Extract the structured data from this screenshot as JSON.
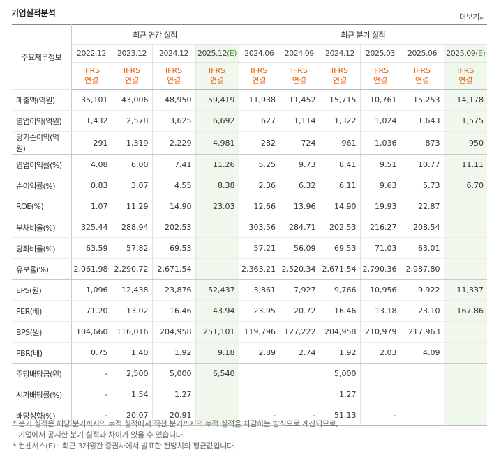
{
  "header": {
    "title": "기업실적분석",
    "more_label": "더보기"
  },
  "table": {
    "label_header": "주요재무정보",
    "group_annual": "최근 연간 실적",
    "group_quarter": "최근 분기 실적",
    "periods": [
      {
        "main": "2022.12",
        "est": ""
      },
      {
        "main": "2023.12",
        "est": ""
      },
      {
        "main": "2024.12",
        "est": ""
      },
      {
        "main": "2025.12",
        "est": "(E)"
      },
      {
        "main": "2024.06",
        "est": ""
      },
      {
        "main": "2024.09",
        "est": ""
      },
      {
        "main": "2024.12",
        "est": ""
      },
      {
        "main": "2025.03",
        "est": ""
      },
      {
        "main": "2025.06",
        "est": ""
      },
      {
        "main": "2025.09",
        "est": "(E)"
      }
    ],
    "ifrs_line1": "IFRS",
    "ifrs_line2": "연결",
    "rows": [
      {
        "label": "매출액(억원)",
        "values": [
          "35,101",
          "43,006",
          "48,950",
          "59,419",
          "11,938",
          "11,452",
          "15,715",
          "10,761",
          "15,253",
          "14,178"
        ]
      },
      {
        "label": "영업이익(억원)",
        "values": [
          "1,432",
          "2,578",
          "3,625",
          "6,692",
          "627",
          "1,114",
          "1,322",
          "1,024",
          "1,643",
          "1,575"
        ]
      },
      {
        "label": "당기순이익(억원)",
        "values": [
          "291",
          "1,319",
          "2,229",
          "4,981",
          "282",
          "724",
          "961",
          "1,036",
          "873",
          "950"
        ]
      },
      {
        "label": "영업이익률(%)",
        "values": [
          "4.08",
          "6.00",
          "7.41",
          "11.26",
          "5.25",
          "9.73",
          "8.41",
          "9.51",
          "10.77",
          "11.11"
        ]
      },
      {
        "label": "순이익률(%)",
        "values": [
          "0.83",
          "3.07",
          "4.55",
          "8.38",
          "2.36",
          "6.32",
          "6.11",
          "9.63",
          "5.73",
          "6.70"
        ]
      },
      {
        "label": "ROE(%)",
        "values": [
          "1.07",
          "11.29",
          "14.90",
          "23.03",
          "12.66",
          "13.96",
          "14.90",
          "19.93",
          "22.87",
          ""
        ]
      },
      {
        "label": "부채비율(%)",
        "values": [
          "325.44",
          "288.94",
          "202.53",
          "",
          "303.56",
          "284.71",
          "202.53",
          "216.27",
          "208.54",
          ""
        ]
      },
      {
        "label": "당좌비율(%)",
        "values": [
          "63.59",
          "57.82",
          "69.53",
          "",
          "57.21",
          "56.09",
          "69.53",
          "71.03",
          "63.01",
          ""
        ]
      },
      {
        "label": "유보율(%)",
        "values": [
          "2,061.98",
          "2,290.72",
          "2,671.54",
          "",
          "2,363.21",
          "2,520.34",
          "2,671.54",
          "2,790.36",
          "2,987.80",
          ""
        ]
      },
      {
        "label": "EPS(원)",
        "values": [
          "1,096",
          "12,438",
          "23,876",
          "52,437",
          "3,861",
          "7,927",
          "9,766",
          "10,956",
          "9,922",
          "11,337"
        ]
      },
      {
        "label": "PER(배)",
        "values": [
          "71.20",
          "13.02",
          "16.46",
          "43.94",
          "23.95",
          "20.72",
          "16.46",
          "13.18",
          "23.10",
          "167.86"
        ]
      },
      {
        "label": "BPS(원)",
        "values": [
          "104,660",
          "116,016",
          "204,958",
          "251,101",
          "119,796",
          "127,222",
          "204,958",
          "210,979",
          "217,963",
          ""
        ]
      },
      {
        "label": "PBR(배)",
        "values": [
          "0.75",
          "1.40",
          "1.92",
          "9.18",
          "2.89",
          "2.74",
          "1.92",
          "2.03",
          "4.09",
          ""
        ]
      },
      {
        "label": "주당배당금(원)",
        "values": [
          "-",
          "2,500",
          "5,000",
          "6,540",
          "",
          "",
          "5,000",
          "",
          "",
          ""
        ]
      },
      {
        "label": "시가배당률(%)",
        "values": [
          "-",
          "1.54",
          "1.27",
          "",
          "",
          "",
          "1.27",
          "",
          "",
          ""
        ]
      },
      {
        "label": "배당성향(%)",
        "values": [
          "-",
          "20.07",
          "20.91",
          "",
          "-",
          "-",
          "51.13",
          "-",
          "",
          ""
        ]
      }
    ]
  },
  "notes": {
    "note1_line1": "* 분기 실적은 해당 분기까지의 누적 실적에서 직전 분기까지의 누적 실적을 차감하는 방식으로 계산되므로,",
    "note1_line2": "기업에서 공시한 분기 실적과 차이가 있을 수 있습니다.",
    "note2_prefix": "* 컨센서스(",
    "note2_mark": "E",
    "note2_suffix": ") : 최근 3개월간 증권사에서 발표한 전망치의 평균값입니다."
  },
  "colors": {
    "ifrs": "#e8600c",
    "estimate_bg": "#f0f8ee",
    "estimate_mark": "#4a8f34"
  }
}
